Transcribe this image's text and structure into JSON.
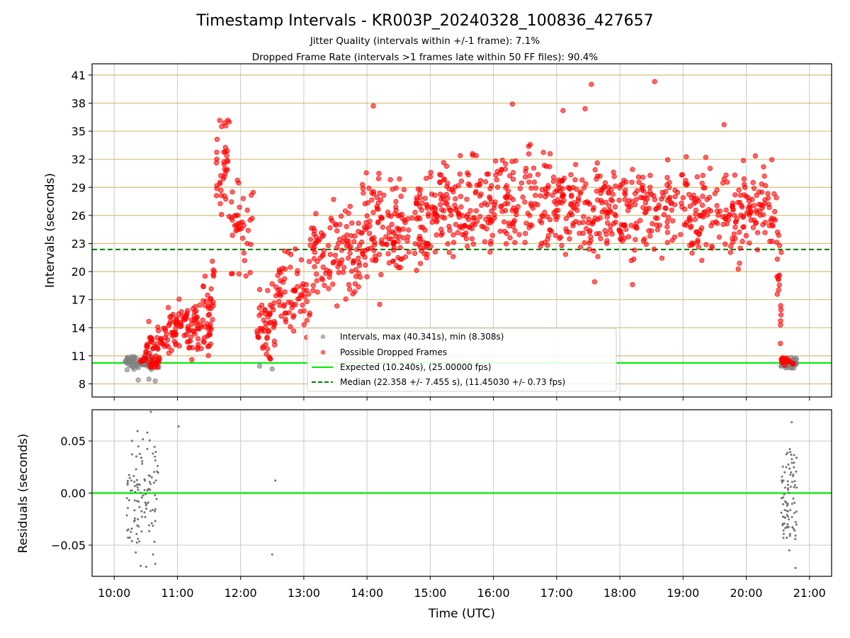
{
  "figure": {
    "title": "Timestamp Intervals - KR003P_20240328_100836_427657",
    "subtitle_line1": "Jitter Quality (intervals within +/-1 frame): 7.1%",
    "subtitle_line2": "Dropped Frame Rate (intervals >1 frames late within 50 FF files): 90.4%",
    "xlabel": "Time (UTC)",
    "x_ticks": [
      "10:00",
      "11:00",
      "12:00",
      "13:00",
      "14:00",
      "15:00",
      "16:00",
      "17:00",
      "18:00",
      "19:00",
      "20:00",
      "21:00"
    ]
  },
  "chart_data": [
    {
      "type": "scatter",
      "panel": "intervals",
      "ylabel": "Intervals (seconds)",
      "xlim_hours": [
        9.65,
        21.35
      ],
      "ylim": [
        6.6,
        42.2
      ],
      "y_ticks": [
        8,
        11,
        14,
        17,
        20,
        23,
        26,
        29,
        32,
        35,
        38,
        41
      ],
      "grid": true,
      "horizontal_grid_color": "#d4bd7c",
      "legend_position": "lower-center",
      "expected_interval": 10.24,
      "median_interval": 22.358,
      "colors": {
        "intervals": "#808080",
        "dropped": "#ff0000",
        "expected": "#00ee00",
        "median": "#008000"
      },
      "series": [
        {
          "name": "Intervals, max (40.341s), min (8.308s)",
          "marker": "circle",
          "segments": [
            {
              "t_start": 10.15,
              "t_end": 10.72,
              "y_center": 10.24,
              "y_spread": 0.55,
              "count": 80
            },
            {
              "t_start": 20.55,
              "t_end": 20.8,
              "y_center": 10.24,
              "y_spread": 0.45,
              "count": 45
            }
          ],
          "points": [
            {
              "t": 10.38,
              "y": 8.4
            },
            {
              "t": 10.55,
              "y": 8.5
            },
            {
              "t": 10.65,
              "y": 8.31
            },
            {
              "t": 12.3,
              "y": 9.9
            },
            {
              "t": 12.5,
              "y": 9.6
            }
          ]
        },
        {
          "name": "Possible Dropped Frames",
          "marker": "circle",
          "segments": [
            {
              "t_start": 10.4,
              "t_end": 10.72,
              "y_center": 10.4,
              "y_spread": 0.6,
              "count": 30
            },
            {
              "t_start": 10.5,
              "t_end": 10.85,
              "y_center": 12.5,
              "y_spread": 1.8,
              "count": 40
            },
            {
              "t_start": 10.85,
              "t_end": 11.55,
              "y_center": 14.0,
              "y_spread": 2.2,
              "count": 110
            },
            {
              "t_start": 11.4,
              "t_end": 11.6,
              "y_center": 18.5,
              "y_spread": 2.5,
              "count": 20
            },
            {
              "t_start": 11.6,
              "t_end": 11.8,
              "y_center": 31.0,
              "y_spread": 4.5,
              "count": 35
            },
            {
              "t_start": 11.8,
              "t_end": 12.2,
              "y_center": 25.0,
              "y_spread": 4.0,
              "count": 40
            },
            {
              "t_start": 12.25,
              "t_end": 12.55,
              "y_center": 14.5,
              "y_spread": 3.0,
              "count": 50
            },
            {
              "t_start": 12.55,
              "t_end": 13.1,
              "y_center": 17.5,
              "y_spread": 3.5,
              "count": 70
            },
            {
              "t_start": 13.1,
              "t_end": 13.9,
              "y_center": 21.5,
              "y_spread": 4.0,
              "count": 110
            },
            {
              "t_start": 13.9,
              "t_end": 15.0,
              "y_center": 24.5,
              "y_spread": 4.5,
              "count": 170
            },
            {
              "t_start": 15.0,
              "t_end": 18.0,
              "y_center": 27.0,
              "y_spread": 4.2,
              "count": 420
            },
            {
              "t_start": 18.0,
              "t_end": 20.2,
              "y_center": 26.5,
              "y_spread": 4.0,
              "count": 280
            },
            {
              "t_start": 20.2,
              "t_end": 20.48,
              "y_center": 27.0,
              "y_spread": 3.5,
              "count": 35
            },
            {
              "t_start": 20.48,
              "t_end": 20.56,
              "y_center": 17.5,
              "y_spread": 5.0,
              "count": 20
            },
            {
              "t_start": 20.55,
              "t_end": 20.75,
              "y_center": 10.5,
              "y_spread": 0.4,
              "count": 20
            }
          ],
          "points": [
            {
              "t": 11.82,
              "y": 36.0
            },
            {
              "t": 11.7,
              "y": 35.5
            },
            {
              "t": 14.1,
              "y": 37.7
            },
            {
              "t": 16.3,
              "y": 37.9
            },
            {
              "t": 17.55,
              "y": 40.0
            },
            {
              "t": 17.45,
              "y": 37.4
            },
            {
              "t": 18.55,
              "y": 40.3
            },
            {
              "t": 17.1,
              "y": 37.2
            },
            {
              "t": 14.2,
              "y": 16.5
            },
            {
              "t": 18.2,
              "y": 18.6
            },
            {
              "t": 17.6,
              "y": 18.9
            },
            {
              "t": 19.65,
              "y": 35.7
            }
          ]
        }
      ],
      "reference_lines": [
        {
          "name": "Expected (10.240s), (25.00000 fps)",
          "y": 10.24,
          "style": "solid"
        },
        {
          "name": "Median (22.358 +/- 7.455 s), (11.45030 +/- 0.73 fps)",
          "y": 22.358,
          "style": "dashed"
        }
      ]
    },
    {
      "type": "scatter",
      "panel": "residuals",
      "ylabel": "Residuals (seconds)",
      "xlim_hours": [
        9.65,
        21.35
      ],
      "ylim": [
        -0.08,
        0.08
      ],
      "y_ticks": [
        0.05,
        0.0,
        -0.05
      ],
      "y_tick_labels": [
        "0.05",
        "0.00",
        "−0.05"
      ],
      "grid": true,
      "zero_line_color": "#00ee00",
      "point_color": "#707070",
      "segments": [
        {
          "t_start": 10.2,
          "t_end": 10.7,
          "y_center": 0.0,
          "y_spread": 0.045,
          "count": 110
        },
        {
          "t_start": 20.55,
          "t_end": 20.8,
          "y_center": 0.0,
          "y_spread": 0.045,
          "count": 85
        }
      ],
      "points": [
        {
          "t": 10.58,
          "y": 0.078
        },
        {
          "t": 11.02,
          "y": 0.064
        },
        {
          "t": 12.55,
          "y": 0.012
        },
        {
          "t": 12.5,
          "y": -0.059
        },
        {
          "t": 10.42,
          "y": -0.07
        },
        {
          "t": 20.78,
          "y": -0.072
        },
        {
          "t": 20.72,
          "y": 0.068
        },
        {
          "t": 10.65,
          "y": -0.068
        }
      ]
    }
  ]
}
